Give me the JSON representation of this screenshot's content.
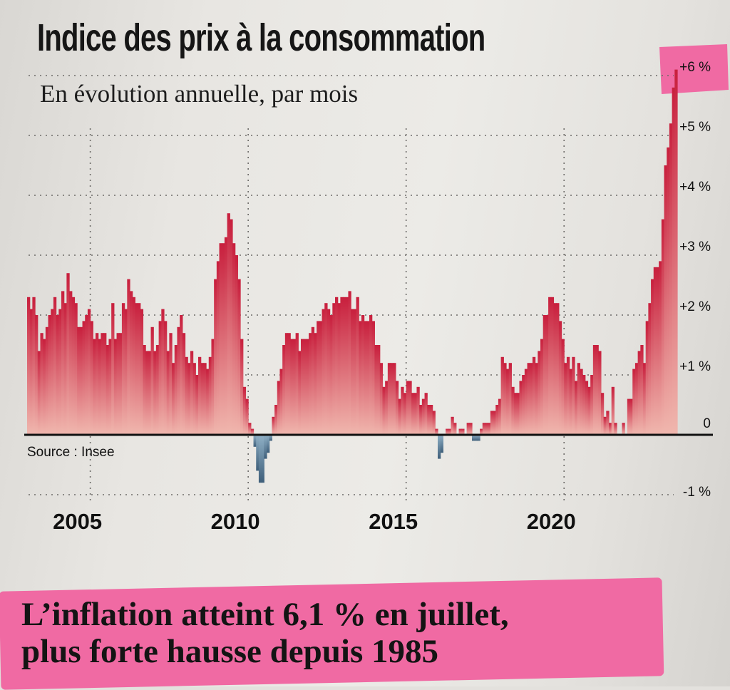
{
  "title": "Indice des prix à la consommation",
  "subtitle": "En évolution annuelle, par mois",
  "source": "Source : Insee",
  "headline": {
    "line1": "L’inflation atteint 6,1 % en juillet,",
    "line2": "plus forte hausse depuis 1985"
  },
  "colors": {
    "positive": "#d33a46",
    "negative": "#5f7f99",
    "highlight": "#f06aa3"
  },
  "chart_data": {
    "type": "bar",
    "title": "Indice des prix à la consommation",
    "subtitle": "En évolution annuelle, par mois",
    "x_tick_labels": [
      "2005",
      "2010",
      "2015",
      "2020"
    ],
    "y_tick_labels": [
      "-1 %",
      "0",
      "+1 %",
      "+2 %",
      "+3 %",
      "+4 %",
      "+5 %",
      "+6 %"
    ],
    "ylim": [
      -1,
      6.2
    ],
    "grid": true,
    "highlighted_tick": "+6 %",
    "start": "2003-01",
    "end": "2022-07",
    "series": [
      {
        "values": [
          2.3,
          2.1,
          2.3,
          2.0,
          1.4,
          1.7,
          1.6,
          1.8,
          2.0,
          2.1,
          2.3,
          2.0,
          2.1,
          2.4,
          2.2,
          2.7,
          2.4,
          2.3,
          2.2,
          1.8,
          1.8,
          1.9,
          2.0,
          2.1,
          1.9,
          1.6,
          1.7,
          1.6,
          1.7,
          1.7,
          1.5,
          1.6,
          2.2,
          1.6,
          1.7,
          1.7,
          2.2,
          2.1,
          2.6,
          2.4,
          2.3,
          2.2,
          2.2,
          2.1,
          1.5,
          1.4,
          1.4,
          1.8,
          1.4,
          1.5,
          1.9,
          2.1,
          1.9,
          1.4,
          1.7,
          1.2,
          1.5,
          1.8,
          2.0,
          1.7,
          1.3,
          1.2,
          1.4,
          1.2,
          1.0,
          1.3,
          1.2,
          1.2,
          1.1,
          1.3,
          1.6,
          2.6,
          2.9,
          3.2,
          3.2,
          3.3,
          3.7,
          3.6,
          3.2,
          3.0,
          2.6,
          1.6,
          0.8,
          0.6,
          0.2,
          0.1,
          -0.2,
          -0.6,
          -0.8,
          -0.8,
          -0.4,
          -0.3,
          -0.1,
          0.3,
          0.5,
          0.9,
          1.1,
          1.5,
          1.7,
          1.7,
          1.6,
          1.6,
          1.7,
          1.4,
          1.6,
          1.6,
          1.6,
          1.7,
          1.8,
          1.7,
          1.9,
          1.9,
          2.1,
          2.2,
          2.1,
          2.0,
          2.2,
          2.3,
          2.2,
          2.3,
          2.3,
          2.3,
          2.4,
          2.1,
          2.1,
          2.3,
          1.9,
          2.0,
          1.9,
          1.9,
          2.0,
          1.9,
          1.5,
          1.5,
          1.2,
          0.8,
          0.9,
          1.2,
          1.2,
          1.2,
          0.9,
          0.6,
          0.8,
          0.7,
          0.9,
          0.9,
          0.7,
          0.7,
          0.8,
          0.5,
          0.6,
          0.7,
          0.5,
          0.5,
          0.4,
          0.1,
          -0.4,
          -0.3,
          0.0,
          0.1,
          0.1,
          0.3,
          0.2,
          0.0,
          0.1,
          0.1,
          0.0,
          0.2,
          0.2,
          -0.1,
          -0.1,
          -0.1,
          0.1,
          0.2,
          0.2,
          0.2,
          0.4,
          0.4,
          0.5,
          0.6,
          1.3,
          1.2,
          1.1,
          1.2,
          0.8,
          0.7,
          0.7,
          0.9,
          1.0,
          1.1,
          1.2,
          1.2,
          1.3,
          1.2,
          1.4,
          1.6,
          2.0,
          2.0,
          2.3,
          2.3,
          2.2,
          2.2,
          1.9,
          1.6,
          1.2,
          1.3,
          1.1,
          1.3,
          0.9,
          1.2,
          1.1,
          1.0,
          0.9,
          0.8,
          1.0,
          1.5,
          1.5,
          1.4,
          0.7,
          0.3,
          0.4,
          0.2,
          0.8,
          0.2,
          0.0,
          0.0,
          0.2,
          0.0,
          0.6,
          0.6,
          1.1,
          1.2,
          1.4,
          1.5,
          1.2,
          1.9,
          2.2,
          2.6,
          2.8,
          2.8,
          2.9,
          3.6,
          4.5,
          4.8,
          5.2,
          5.8,
          6.1
        ]
      }
    ]
  }
}
